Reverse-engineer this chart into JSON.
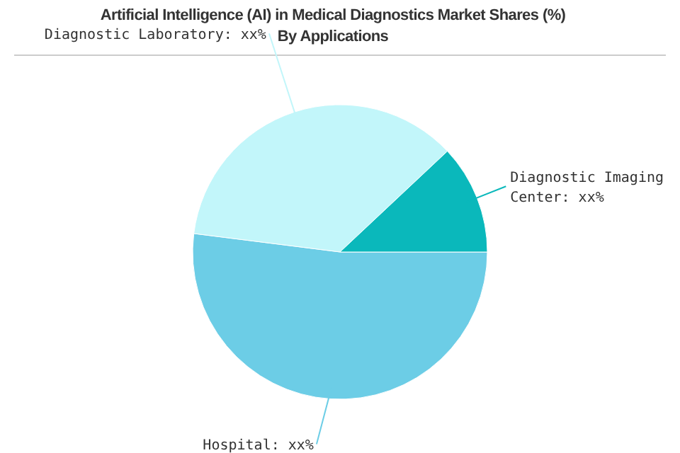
{
  "chart_data": {
    "type": "pie",
    "title": "Artificial Intelligence (AI) in Medical Diagnostics Market Shares (%) By Applications",
    "categories": [
      "Hospital",
      "Diagnostic Laboratory",
      "Diagnostic Imaging Center"
    ],
    "values": [
      52,
      36,
      12
    ],
    "value_labels": [
      "xx%",
      "xx%",
      "xx%"
    ],
    "colors": [
      "#6ccde6",
      "#c2f6fa",
      "#0ab8bb"
    ],
    "legend": false
  }
}
